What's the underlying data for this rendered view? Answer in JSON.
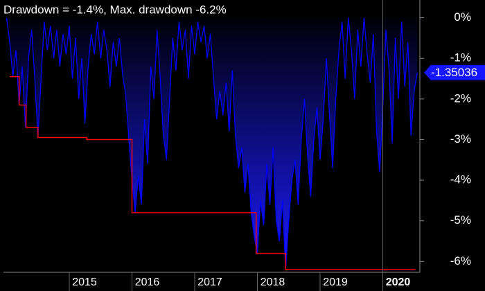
{
  "chart_data": {
    "type": "area-line",
    "title": "Drawdown = -1.4%, Max. drawdown -6.2%",
    "x": [
      2014.0,
      2014.05,
      2014.1,
      2014.15,
      2014.2,
      2014.25,
      2014.3,
      2014.35,
      2014.4,
      2014.45,
      2014.5,
      2014.55,
      2014.6,
      2014.65,
      2014.7,
      2014.75,
      2014.8,
      2014.85,
      2014.9,
      2014.95,
      2015.0,
      2015.05,
      2015.1,
      2015.15,
      2015.2,
      2015.25,
      2015.3,
      2015.35,
      2015.4,
      2015.45,
      2015.5,
      2015.55,
      2015.6,
      2015.65,
      2015.7,
      2015.75,
      2015.8,
      2015.85,
      2015.9,
      2015.95,
      2016.0,
      2016.05,
      2016.1,
      2016.15,
      2016.2,
      2016.25,
      2016.3,
      2016.35,
      2016.4,
      2016.45,
      2016.5,
      2016.55,
      2016.6,
      2016.65,
      2016.7,
      2016.75,
      2016.8,
      2016.85,
      2016.9,
      2016.95,
      2017.0,
      2017.05,
      2017.1,
      2017.15,
      2017.2,
      2017.25,
      2017.3,
      2017.35,
      2017.4,
      2017.45,
      2017.5,
      2017.55,
      2017.6,
      2017.65,
      2017.7,
      2017.75,
      2017.8,
      2017.85,
      2017.9,
      2017.95,
      2018.0,
      2018.05,
      2018.1,
      2018.15,
      2018.2,
      2018.25,
      2018.3,
      2018.35,
      2018.4,
      2018.45,
      2018.5,
      2018.55,
      2018.6,
      2018.65,
      2018.7,
      2018.75,
      2018.8,
      2018.85,
      2018.9,
      2018.95,
      2019.0,
      2019.05,
      2019.1,
      2019.15,
      2019.2,
      2019.25,
      2019.3,
      2019.35,
      2019.4,
      2019.45,
      2019.5,
      2019.55,
      2019.6,
      2019.65,
      2019.7,
      2019.75,
      2019.8,
      2019.85,
      2019.9,
      2019.95,
      2020.0,
      2020.05,
      2020.1,
      2020.15,
      2020.2,
      2020.25,
      2020.3,
      2020.35,
      2020.4,
      2020.45,
      2020.5,
      2020.55
    ],
    "series": [
      {
        "name": "Drawdown",
        "color": "#0000ff",
        "values": [
          0,
          -0.6,
          -1.45,
          -0.8,
          -2.15,
          -1.2,
          -2.7,
          -1.0,
          -0.3,
          -1.5,
          -2.95,
          -1.5,
          -0.1,
          -0.8,
          -0.2,
          -1.0,
          -0.3,
          -1.2,
          -0.4,
          -0.9,
          -0.2,
          -1.5,
          -0.5,
          -2.0,
          -1.0,
          -2.6,
          -1.2,
          -0.4,
          -0.9,
          -0.1,
          -1.0,
          -0.3,
          -0.8,
          -1.7,
          -0.6,
          -1.2,
          -0.5,
          -1.4,
          -1.9,
          -3.0,
          -4.0,
          -4.8,
          -3.9,
          -4.6,
          -2.5,
          -3.6,
          -1.2,
          -2.0,
          -0.3,
          -1.5,
          -2.9,
          -3.5,
          -2.0,
          -0.5,
          -1.3,
          -0.1,
          -0.8,
          -0.3,
          -1.5,
          -0.2,
          -0.9,
          -0.1,
          -0.6,
          -0.2,
          -1.0,
          -0.4,
          -1.5,
          -2.5,
          -1.8,
          -2.4,
          -1.6,
          -2.8,
          -1.3,
          -2.9,
          -3.7,
          -3.2,
          -4.3,
          -3.6,
          -4.8,
          -5.4,
          -5.8,
          -4.5,
          -5.1,
          -3.6,
          -4.6,
          -3.2,
          -5.0,
          -5.5,
          -4.5,
          -6.2,
          -5.0,
          -4.0,
          -3.5,
          -4.6,
          -3.0,
          -2.0,
          -3.4,
          -4.4,
          -3.0,
          -2.2,
          -3.5,
          -2.5,
          -1.0,
          -2.4,
          -3.7,
          -2.0,
          -0.8,
          -0.1,
          -1.5,
          0,
          -0.8,
          -2.0,
          -0.3,
          -1.2,
          0,
          -0.9,
          -1.6,
          -0.4,
          -2.8,
          -3.8,
          -2.2,
          -0.3,
          -1.3,
          -3.1,
          -0.5,
          -2.0,
          -0.1,
          -1.7,
          -0.6,
          -2.9,
          -1.8,
          -1.35036
        ]
      }
    ],
    "max_drawdown": {
      "name": "Max. drawdown",
      "color": "#ff0000",
      "x": [
        2014.05,
        2014.2,
        2014.31,
        2014.5,
        2015.28,
        2016.0,
        2017.98,
        2018.45,
        2020.52
      ],
      "values": [
        -1.45,
        -2.15,
        -2.7,
        -2.95,
        -3.0,
        -4.8,
        -5.8,
        -6.2,
        -6.2
      ]
    },
    "last_value": -1.35036,
    "xlim": [
      2013.95,
      2020.58
    ],
    "xticks": [
      2015,
      2016,
      2017,
      2018,
      2019,
      2020
    ],
    "ylim": [
      -6.25,
      0.3
    ],
    "yticks": [
      {
        "value": 0,
        "label": "0%"
      },
      {
        "value": -1,
        "label": "-1%"
      },
      {
        "value": -2,
        "label": "-2%"
      },
      {
        "value": -3,
        "label": "-3%"
      },
      {
        "value": -4,
        "label": "-4%"
      },
      {
        "value": -5,
        "label": "-5%"
      },
      {
        "value": -6,
        "label": "-6%"
      }
    ]
  }
}
